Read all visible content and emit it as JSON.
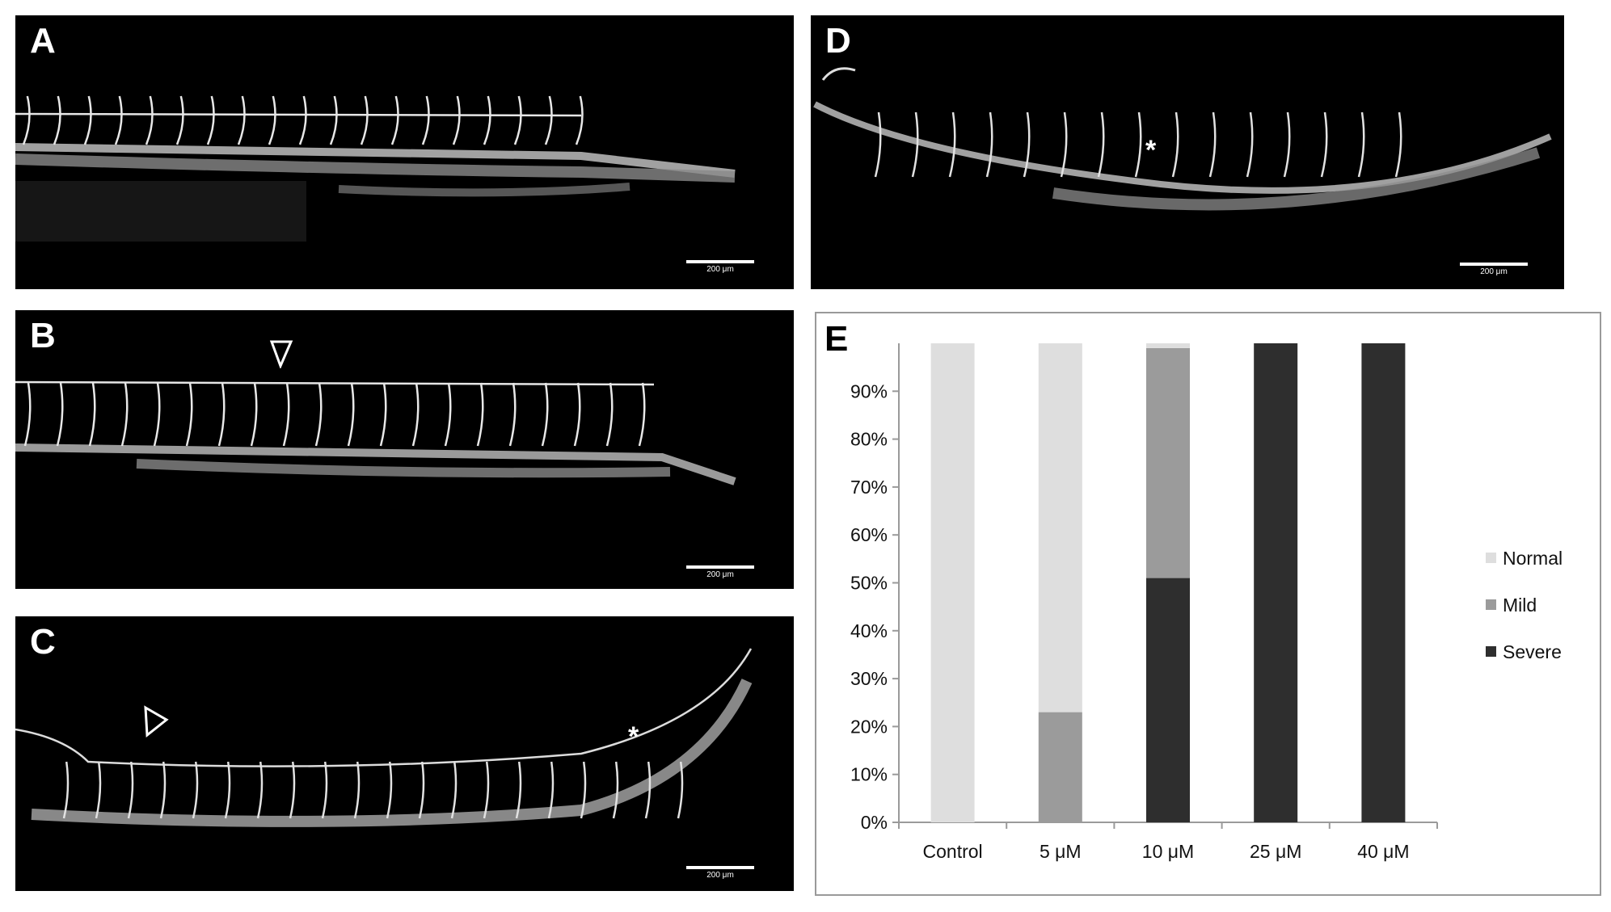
{
  "panels": {
    "a": {
      "letter": "A",
      "scale": "200 μm"
    },
    "b": {
      "letter": "B",
      "scale": "200 μm"
    },
    "c": {
      "letter": "C",
      "scale": "200 μm",
      "asterisk": "*"
    },
    "d": {
      "letter": "D",
      "scale": "200 μm",
      "asterisk": "*"
    },
    "e": {
      "letter": "E"
    }
  },
  "chart_data": {
    "type": "bar",
    "stacked": true,
    "categories": [
      "Control",
      "5 μM",
      "10 μM",
      "25 μM",
      "40 μM"
    ],
    "series": [
      {
        "name": "Severe",
        "values": [
          0,
          0,
          51,
          100,
          100
        ],
        "color": "#2e2e2e"
      },
      {
        "name": "Mild",
        "values": [
          0,
          23,
          48,
          0,
          0
        ],
        "color": "#9b9b9b"
      },
      {
        "name": "Normal",
        "values": [
          100,
          77,
          1,
          0,
          0
        ],
        "color": "#dedede"
      }
    ],
    "ylim": [
      0,
      100
    ],
    "yticks": [
      "0%",
      "10%",
      "20%",
      "30%",
      "40%",
      "50%",
      "60%",
      "70%",
      "80%",
      "90%"
    ],
    "legend": {
      "position": "right",
      "order": [
        "Normal",
        "Mild",
        "Severe"
      ]
    },
    "grid": false
  }
}
